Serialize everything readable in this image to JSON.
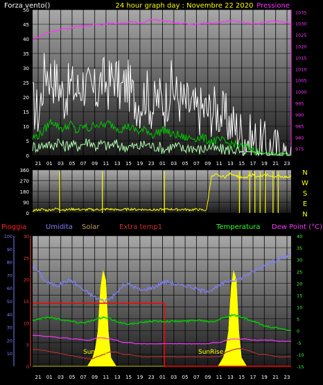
{
  "title": "24 hour graph day : Novembre 22 2020",
  "colors": {
    "bg": "#000000",
    "plot_top": "#a8a8a8",
    "plot_bottom": "#1a1a1a",
    "grid": "#000000",
    "wind_avg": "#b4ffb4",
    "wind_gust": "#ffffff",
    "wind_mid": "#00cc00",
    "pressure": "#ff33ff",
    "direction": "#ffff00",
    "rain": "#ff0000",
    "humidity": "#8080ff",
    "solar": "#ffff00",
    "extra_temp": "#b03030",
    "temperature": "#00cc00",
    "dew_point": "#ff33ff",
    "axis_white": "#ffffff",
    "axis_pressure": "#ff33ff",
    "axis_humidity": "#8080ff",
    "axis_rain": "#ff4040",
    "axis_temp": "#40ff40"
  },
  "time_labels": [
    "21",
    "01",
    "03",
    "05",
    "07",
    "09",
    "11",
    "13",
    "15",
    "19",
    "23",
    "01",
    "03",
    "05",
    "07",
    "09",
    "11",
    "13",
    "15",
    "17",
    "19",
    "21",
    "23"
  ],
  "chart_data": [
    {
      "type": "line",
      "panel": "wind-pressure",
      "left_label": "Forza vento()",
      "right_label": "Pressione",
      "left_axis": {
        "ticks": [
          0,
          5,
          10,
          15,
          20,
          25,
          30,
          35,
          40,
          45,
          50
        ],
        "ylim": [
          0,
          50
        ]
      },
      "right_axis": {
        "ticks": [
          975,
          980,
          985,
          990,
          995,
          1000,
          1005,
          1010,
          1015,
          1020,
          1025,
          1030,
          1035
        ],
        "ylim": [
          972,
          1036
        ]
      },
      "series": [
        {
          "role": "gust",
          "axis": "left",
          "values": [
            18,
            14,
            30,
            27,
            25,
            20,
            24,
            22,
            25,
            22,
            21,
            26,
            24,
            28,
            22,
            25,
            20,
            18,
            22,
            16,
            20,
            18,
            24,
            20,
            18,
            17,
            15,
            16,
            15,
            16,
            14,
            12,
            10,
            8,
            6,
            5,
            4,
            3,
            2,
            1.5,
            1,
            1
          ]
        },
        {
          "role": "average",
          "axis": "left",
          "values": [
            3,
            3,
            4,
            3,
            5,
            3,
            4,
            3,
            4,
            5,
            3,
            4,
            3,
            4,
            3,
            3,
            3,
            3,
            4,
            3,
            3,
            2,
            3,
            3,
            2,
            3,
            2,
            2,
            3,
            2,
            2,
            2,
            2,
            1,
            1,
            1,
            1,
            0.5,
            0.5,
            0.5,
            0.5,
            0.5
          ]
        },
        {
          "role": "wind",
          "axis": "left",
          "values": [
            6,
            7,
            9,
            12,
            10,
            9,
            11,
            8,
            10,
            9,
            11,
            10,
            11,
            10,
            9,
            10,
            9,
            8,
            9,
            7,
            8,
            9,
            7,
            7,
            6,
            6,
            6,
            6,
            5,
            5,
            5,
            4,
            4,
            3,
            3,
            2,
            1,
            1,
            0.5,
            0.5,
            0.5,
            0.5
          ]
        },
        {
          "role": "pressure",
          "axis": "right",
          "values": [
            1023.5,
            1024,
            1025.5,
            1026.5,
            1027,
            1027.5,
            1028,
            1028.5,
            1029,
            1029,
            1029.5,
            1029.5,
            1030,
            1030,
            1030,
            1030.5,
            1030.5,
            1030,
            1031,
            1031.5,
            1031.5,
            1031,
            1030.5,
            1030,
            1030,
            1029.5,
            1029.5,
            1030,
            1030,
            1030.5,
            1030.5,
            1031,
            1031,
            1030.5,
            1030,
            1030,
            1030,
            1030.5,
            1031,
            1031,
            1030.5,
            1030
          ]
        }
      ]
    },
    {
      "type": "line",
      "panel": "wind-direction",
      "left_axis": {
        "ticks": [
          0,
          90,
          180,
          270,
          360
        ],
        "ylim": [
          0,
          360
        ]
      },
      "right_labels": [
        "N",
        "W",
        "S",
        "E",
        "N"
      ],
      "series": [
        {
          "role": "direction",
          "baseline": [
            20,
            25,
            30,
            22,
            28,
            35,
            30,
            25,
            30,
            32,
            28,
            25,
            30,
            26,
            30,
            28,
            32,
            30,
            25,
            28,
            30,
            33,
            28,
            30,
            27,
            30,
            25,
            30,
            28,
            32,
            30,
            28,
            30,
            26,
            28,
            30,
            25,
            22,
            300,
            320,
            310,
            300,
            330,
            320,
            300,
            290,
            310,
            320,
            300,
            310,
            320,
            300,
            310,
            305,
            300,
            310
          ],
          "spikes_frac": [
            0.105,
            0.27,
            0.51,
            0.8,
            0.84,
            0.86,
            0.88,
            0.9,
            0.93,
            0.95
          ]
        }
      ]
    },
    {
      "type": "line",
      "panel": "temperature-humidity",
      "legend": [
        "Pioggia",
        "Umidita",
        "Solar",
        "Extra temp1",
        "Temperatura",
        "Dew Point (°C)"
      ],
      "annotations": [
        "SunRise",
        "SunRise"
      ],
      "left_axes": {
        "humidity": {
          "ticks": [
            10,
            20,
            30,
            40,
            50,
            60,
            70,
            80,
            90,
            100
          ],
          "ylim": [
            0,
            100
          ]
        },
        "rain": {
          "ticks": [
            0,
            5,
            10,
            15,
            20,
            25,
            30
          ],
          "ylim": [
            0,
            30
          ]
        }
      },
      "right_axis": {
        "ticks": [
          -15,
          -10,
          -5,
          0,
          5,
          10,
          15,
          20,
          25,
          30,
          35,
          40
        ],
        "ylim": [
          -15,
          40
        ]
      },
      "rain_rect": {
        "value": 14.5,
        "end_frac": 0.51
      },
      "series": [
        {
          "role": "humidity",
          "axis": "humidity",
          "values": [
            77,
            72,
            65,
            63,
            62,
            65,
            66,
            62,
            58,
            55,
            52,
            50,
            52,
            56,
            62,
            63,
            60,
            58,
            60,
            61,
            64,
            65,
            63,
            62,
            62,
            60,
            58,
            58,
            59,
            62,
            65,
            66,
            67,
            70,
            72,
            75,
            78,
            80,
            82,
            84,
            86
          ]
        },
        {
          "role": "temperature",
          "axis": "temp",
          "values": [
            4.5,
            5,
            5.5,
            5.5,
            5,
            4.5,
            4,
            3.5,
            3.5,
            4,
            5,
            5.5,
            5,
            4,
            3,
            3,
            3,
            3.5,
            4,
            4,
            4,
            4,
            4,
            4,
            4,
            4.5,
            4.5,
            4,
            4,
            5,
            6,
            6.5,
            6,
            5,
            4,
            3,
            2,
            1.5,
            1,
            0.5,
            0
          ]
        },
        {
          "role": "dew_point",
          "axis": "temp",
          "values": [
            -2,
            -2,
            -2.5,
            -2.5,
            -3,
            -3,
            -3.5,
            -3.5,
            -4,
            -4,
            -3,
            -3,
            -3.5,
            -4,
            -5,
            -5,
            -5.5,
            -5.5,
            -5.5,
            -5.5,
            -5.5,
            -5.5,
            -5.5,
            -5.5,
            -5.5,
            -5.5,
            -5.5,
            -5.5,
            -5,
            -5,
            -4,
            -3.5,
            -3.5,
            -3.5,
            -4,
            -4,
            -4,
            -4,
            -4.5,
            -4.5,
            -4.5
          ]
        },
        {
          "role": "extra_temp",
          "axis": "temp",
          "values": [
            -8,
            -8,
            -8.5,
            -9,
            -9.5,
            -10,
            -10.5,
            -11,
            -11.5,
            -12,
            -11,
            -10,
            -9,
            -9,
            -10,
            -10,
            -10.5,
            -11,
            -11,
            -11,
            -11,
            -11,
            -11,
            -11,
            -11,
            -11,
            -11,
            -11,
            -11,
            -11,
            -9,
            -8,
            -7.5,
            -8,
            -9,
            -10,
            -10,
            -10.5,
            -11,
            -11,
            -11
          ]
        },
        {
          "role": "solar",
          "axis": "rain",
          "values": [
            0,
            0,
            0,
            0,
            0,
            0,
            0,
            0,
            0,
            0,
            0,
            0,
            0,
            0,
            0,
            0,
            0,
            0,
            0,
            0,
            0,
            0,
            1,
            2,
            4,
            8,
            18,
            22,
            20,
            8,
            2,
            1,
            0,
            0,
            0,
            0,
            0,
            0,
            0,
            0,
            0,
            0,
            0,
            0,
            0,
            0,
            0,
            0,
            0,
            0,
            0,
            0,
            0,
            0,
            0,
            0,
            0,
            0,
            0,
            0,
            0,
            0,
            0,
            0,
            0,
            0,
            0,
            0,
            0,
            0,
            0,
            0,
            1,
            2,
            4,
            8,
            18,
            22,
            20,
            8,
            2,
            1,
            0,
            0,
            0,
            0,
            0,
            0,
            0,
            0,
            0,
            0,
            0,
            0,
            0,
            0,
            0,
            0,
            0,
            0
          ]
        }
      ]
    }
  ]
}
